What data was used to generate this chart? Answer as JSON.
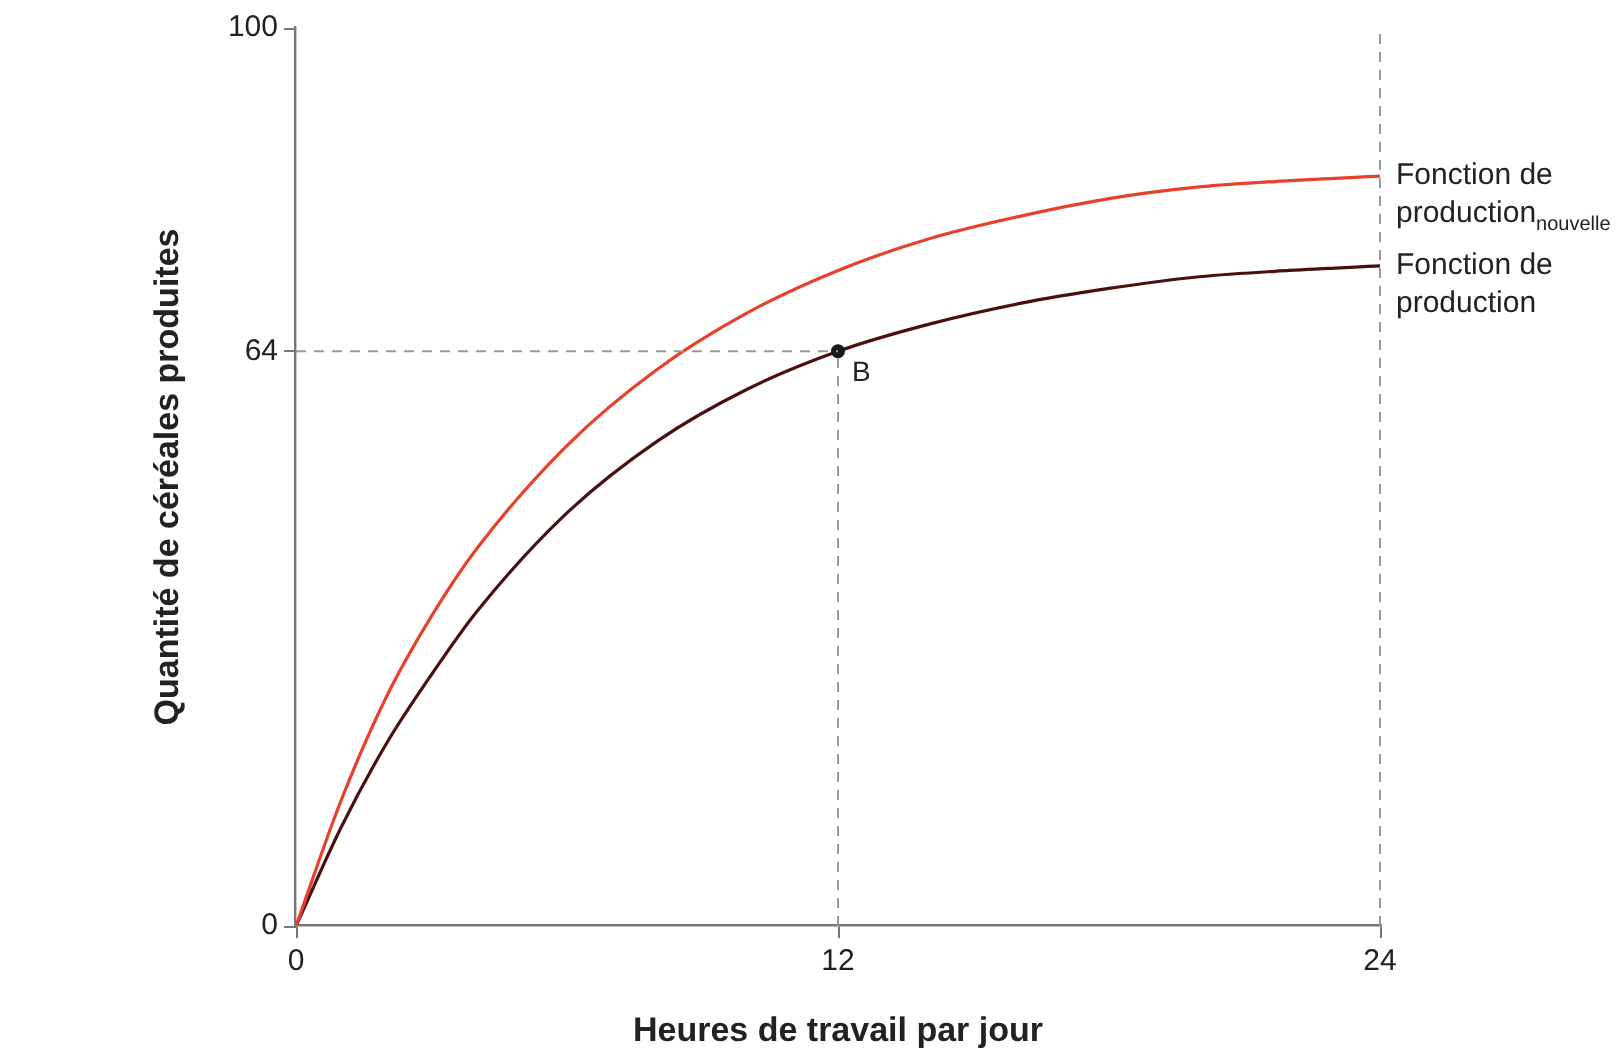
{
  "chart_data": {
    "type": "line",
    "xlabel": "Heures de travail par jour",
    "ylabel": "Quantité de céréales produites",
    "x": [
      0,
      1,
      2,
      3,
      4,
      6,
      8,
      10,
      12,
      14,
      16,
      18,
      20,
      22,
      24
    ],
    "series": [
      {
        "name": "Fonction de production$_{nouvelle}$",
        "color": "#e8402a",
        "values": [
          0,
          14,
          25.5,
          34.5,
          42,
          53.5,
          62,
          68.3,
          73,
          76.5,
          79,
          81,
          82.3,
          83,
          83.5
        ]
      },
      {
        "name": "Fonction de production",
        "color": "#4a0f0f",
        "values": [
          0,
          11,
          20.3,
          28,
          35,
          46,
          54,
          59.8,
          64,
          67,
          69.3,
          71,
          72.3,
          73,
          73.5
        ]
      },
      {
        "type": "scatter",
        "color": "#1a1a1a",
        "x": [
          12
        ],
        "values": [
          64
        ]
      }
    ],
    "annotations": [
      {
        "text": "B",
        "x": 12,
        "y": 64
      }
    ],
    "ref_lines": [
      {
        "axis": "x",
        "value": 12,
        "color": "#999999",
        "line_style": "dashed"
      },
      {
        "axis": "y",
        "value": 64,
        "color": "#999999",
        "line_style": "dashed"
      },
      {
        "axis": "x",
        "value": 24,
        "color": "#999999",
        "line_style": "dashed"
      }
    ],
    "xlim": [
      0,
      24
    ],
    "xticks": [
      0,
      12,
      24
    ],
    "ylim": [
      0,
      100
    ],
    "yticks": [
      0,
      64,
      100
    ],
    "grid": false,
    "legend": false,
    "line_style": "solid"
  }
}
